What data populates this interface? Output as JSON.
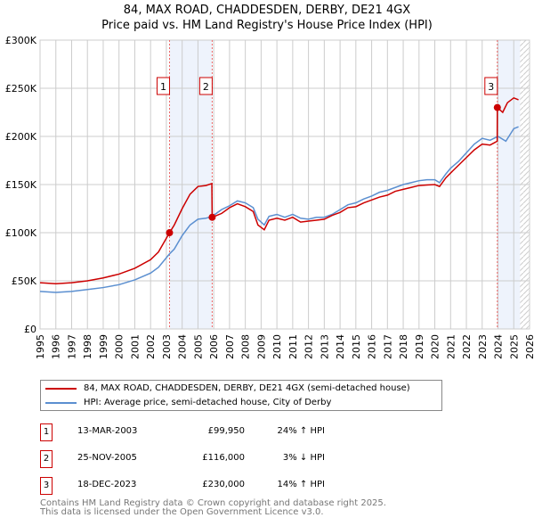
{
  "title_line1": "84, MAX ROAD, CHADDESDEN, DERBY, DE21 4GX",
  "title_line2": "Price paid vs. HM Land Registry's House Price Index (HPI)",
  "chart_data": {
    "type": "line",
    "ylim": [
      0,
      300000
    ],
    "xlim": [
      1995,
      2026
    ],
    "yticks": [
      {
        "v": 0,
        "l": "£0"
      },
      {
        "v": 50000,
        "l": "£50K"
      },
      {
        "v": 100000,
        "l": "£100K"
      },
      {
        "v": 150000,
        "l": "£150K"
      },
      {
        "v": 200000,
        "l": "£200K"
      },
      {
        "v": 250000,
        "l": "£250K"
      },
      {
        "v": 300000,
        "l": "£300K"
      }
    ],
    "xticks": [
      1995,
      1996,
      1997,
      1998,
      1999,
      2000,
      2001,
      2002,
      2003,
      2004,
      2005,
      2006,
      2007,
      2008,
      2009,
      2010,
      2011,
      2012,
      2013,
      2014,
      2015,
      2016,
      2017,
      2018,
      2019,
      2020,
      2021,
      2022,
      2023,
      2024,
      2025,
      2026
    ],
    "series": [
      {
        "name": "84, MAX ROAD, CHADDESDEN, DERBY, DE21 4GX (semi-detached house)",
        "color": "#cc0000",
        "x": [
          1995,
          1996,
          1997,
          1998,
          1999,
          2000,
          2001,
          2002,
          2002.5,
          2003.2,
          2003.5,
          2004,
          2004.5,
          2005,
          2005.5,
          2005.88,
          2005.9,
          2006.5,
          2007,
          2007.5,
          2008,
          2008.5,
          2008.8,
          2009.2,
          2009.5,
          2010,
          2010.5,
          2011,
          2011.5,
          2012,
          2012.5,
          2013,
          2013.5,
          2014,
          2014.5,
          2015,
          2015.5,
          2016,
          2016.5,
          2017,
          2017.5,
          2018,
          2018.5,
          2019,
          2019.5,
          2020,
          2020.3,
          2020.7,
          2021,
          2021.5,
          2022,
          2022.5,
          2023,
          2023.5,
          2023.95,
          2023.96,
          2024.3,
          2024.6,
          2025,
          2025.3
        ],
        "y": [
          48000,
          47000,
          48000,
          50000,
          53000,
          57000,
          63000,
          72000,
          80000,
          99950,
          108000,
          125000,
          140000,
          148000,
          149000,
          151000,
          116000,
          120000,
          126000,
          130000,
          127000,
          122000,
          108000,
          103000,
          113000,
          115000,
          113000,
          116000,
          111000,
          112000,
          113000,
          114000,
          118000,
          121000,
          126000,
          127000,
          131000,
          134000,
          137000,
          139000,
          143000,
          145000,
          147000,
          149000,
          149500,
          150000,
          148000,
          157000,
          162000,
          170000,
          178000,
          186000,
          192000,
          191000,
          195000,
          230000,
          225000,
          235000,
          240000,
          238000
        ]
      },
      {
        "name": "HPI: Average price, semi-detached house, City of Derby",
        "color": "#5b8fd0",
        "x": [
          1995,
          1996,
          1997,
          1998,
          1999,
          2000,
          2001,
          2002,
          2002.5,
          2003.2,
          2003.5,
          2004,
          2004.5,
          2005,
          2005.5,
          2005.9,
          2006.5,
          2007,
          2007.5,
          2008,
          2008.5,
          2008.8,
          2009.2,
          2009.5,
          2010,
          2010.5,
          2011,
          2011.5,
          2012,
          2012.5,
          2013,
          2013.5,
          2014,
          2014.5,
          2015,
          2015.5,
          2016,
          2016.5,
          2017,
          2017.5,
          2018,
          2018.5,
          2019,
          2019.5,
          2020,
          2020.3,
          2020.7,
          2021,
          2021.5,
          2022,
          2022.5,
          2023,
          2023.5,
          2024,
          2024.5,
          2025,
          2025.3
        ],
        "y": [
          39000,
          38000,
          39000,
          41000,
          43000,
          46000,
          51000,
          58000,
          64000,
          78000,
          83000,
          97000,
          108000,
          114000,
          115000,
          117000,
          124000,
          128000,
          133000,
          131000,
          126000,
          114000,
          108000,
          117000,
          119000,
          116000,
          119000,
          115000,
          114000,
          116000,
          116000,
          119000,
          124000,
          129000,
          131000,
          135000,
          138000,
          142000,
          144000,
          147000,
          150000,
          152000,
          154000,
          155000,
          155000,
          152000,
          161000,
          167000,
          174000,
          183000,
          192000,
          198000,
          196000,
          200000,
          195000,
          208000,
          210000
        ]
      }
    ],
    "sales": [
      {
        "n": "1",
        "x": 2003.2,
        "y": 99950
      },
      {
        "n": "2",
        "x": 2005.9,
        "y": 116000
      },
      {
        "n": "3",
        "x": 2023.96,
        "y": 230000
      }
    ]
  },
  "legend": {
    "red": "84, MAX ROAD, CHADDESDEN, DERBY, DE21 4GX (semi-detached house)",
    "blue": "HPI: Average price, semi-detached house, City of Derby"
  },
  "table": [
    {
      "n": "1",
      "date": "13-MAR-2003",
      "price": "£99,950",
      "hpi": "24% ↑ HPI"
    },
    {
      "n": "2",
      "date": "25-NOV-2005",
      "price": "£116,000",
      "hpi": "3% ↓ HPI"
    },
    {
      "n": "3",
      "date": "18-DEC-2023",
      "price": "£230,000",
      "hpi": "14% ↑ HPI"
    }
  ],
  "footer1": "Contains HM Land Registry data © Crown copyright and database right 2025.",
  "footer2": "This data is licensed under the Open Government Licence v3.0."
}
